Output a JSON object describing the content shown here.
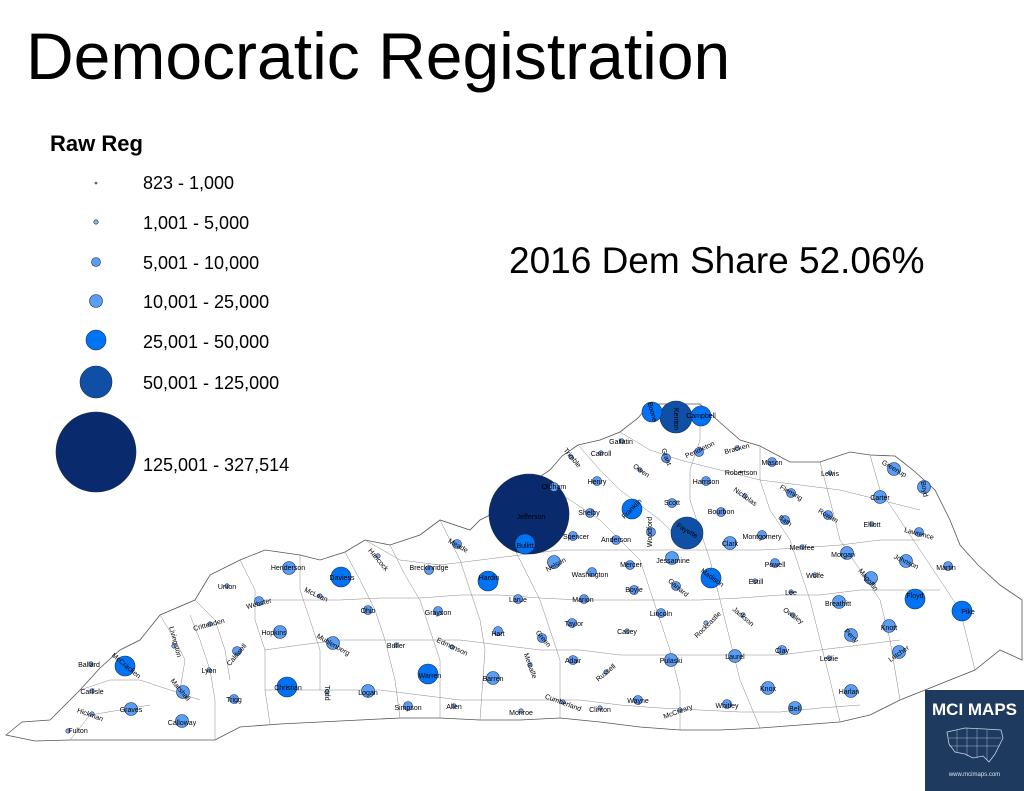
{
  "title": "Democratic Registration",
  "legend": {
    "title": "Raw Reg",
    "classes": [
      {
        "label": "823 - 1,000",
        "color": "#99b9f0"
      },
      {
        "label": "1,001 - 5,000",
        "color": "#8fb3f2"
      },
      {
        "label": "5,001 - 10,000",
        "color": "#5e99f3"
      },
      {
        "label": "10,001 - 25,000",
        "color": "#5a9df5"
      },
      {
        "label": "25,001 - 50,000",
        "color": "#0073f5"
      },
      {
        "label": "50,001 - 125,000",
        "color": "#0f4fa5"
      },
      {
        "label": "125,001 - 327,514",
        "color": "#0a2a6e"
      }
    ]
  },
  "annotation": "2016 Dem Share 52.06%",
  "logo": {
    "text": "MCI MAPS",
    "url": "www.mcimaps.com"
  },
  "counties": [
    {
      "name": "Jefferson",
      "cls": 6
    },
    {
      "name": "Fayette",
      "cls": 5
    },
    {
      "name": "Kenton",
      "cls": 5
    },
    {
      "name": "Boone",
      "cls": 4
    },
    {
      "name": "Campbell",
      "cls": 4
    },
    {
      "name": "Bullitt",
      "cls": 4
    },
    {
      "name": "Hardin",
      "cls": 4
    },
    {
      "name": "Daviess",
      "cls": 4
    },
    {
      "name": "Warren",
      "cls": 4
    },
    {
      "name": "Christian",
      "cls": 4
    },
    {
      "name": "McCracken",
      "cls": 4
    },
    {
      "name": "Pike",
      "cls": 4
    },
    {
      "name": "Floyd",
      "cls": 4
    },
    {
      "name": "Madison",
      "cls": 4
    },
    {
      "name": "Franklin",
      "cls": 4
    },
    {
      "name": "Oldham",
      "cls": 2
    },
    {
      "name": "Shelby",
      "cls": 2
    },
    {
      "name": "Spencer",
      "cls": 2
    },
    {
      "name": "Anderson",
      "cls": 2
    },
    {
      "name": "Woodford",
      "cls": 2
    },
    {
      "name": "Scott",
      "cls": 2
    },
    {
      "name": "Bourbon",
      "cls": 2
    },
    {
      "name": "Clark",
      "cls": 3
    },
    {
      "name": "Montgomery",
      "cls": 2
    },
    {
      "name": "Jessamine",
      "cls": 3
    },
    {
      "name": "Mercer",
      "cls": 2
    },
    {
      "name": "Boyle",
      "cls": 2
    },
    {
      "name": "Garrard",
      "cls": 2
    },
    {
      "name": "Washington",
      "cls": 2
    },
    {
      "name": "Nelson",
      "cls": 3
    },
    {
      "name": "Marion",
      "cls": 2
    },
    {
      "name": "Larue",
      "cls": 2
    },
    {
      "name": "Meade",
      "cls": 2
    },
    {
      "name": "Breckinridge",
      "cls": 2
    },
    {
      "name": "Hancock",
      "cls": 1
    },
    {
      "name": "Henderson",
      "cls": 3
    },
    {
      "name": "Union",
      "cls": 1
    },
    {
      "name": "Webster",
      "cls": 2
    },
    {
      "name": "McLean",
      "cls": 1
    },
    {
      "name": "Ohio",
      "cls": 2
    },
    {
      "name": "Grayson",
      "cls": 2
    },
    {
      "name": "Hart",
      "cls": 2
    },
    {
      "name": "Green",
      "cls": 2
    },
    {
      "name": "Taylor",
      "cls": 2
    },
    {
      "name": "Casey",
      "cls": 1
    },
    {
      "name": "Lincoln",
      "cls": 2
    },
    {
      "name": "Rockcastle",
      "cls": 1
    },
    {
      "name": "Jackson",
      "cls": 1
    },
    {
      "name": "Estill",
      "cls": 1
    },
    {
      "name": "Powell",
      "cls": 2
    },
    {
      "name": "Lee",
      "cls": 1
    },
    {
      "name": "Owsley",
      "cls": 1
    },
    {
      "name": "Breathitt",
      "cls": 3
    },
    {
      "name": "Wolfe",
      "cls": 1
    },
    {
      "name": "Menifee",
      "cls": 1
    },
    {
      "name": "Morgan",
      "cls": 3
    },
    {
      "name": "Magoffin",
      "cls": 3
    },
    {
      "name": "Johnson",
      "cls": 3
    },
    {
      "name": "Martin",
      "cls": 2
    },
    {
      "name": "Knott",
      "cls": 3
    },
    {
      "name": "Perry",
      "cls": 3
    },
    {
      "name": "Letcher",
      "cls": 3
    },
    {
      "name": "Leslie",
      "cls": 1
    },
    {
      "name": "Clay",
      "cls": 2
    },
    {
      "name": "Laurel",
      "cls": 3
    },
    {
      "name": "Knox",
      "cls": 3
    },
    {
      "name": "Bell",
      "cls": 3
    },
    {
      "name": "Harlan",
      "cls": 3
    },
    {
      "name": "Whitley",
      "cls": 2
    },
    {
      "name": "McCreary",
      "cls": 1
    },
    {
      "name": "Wayne",
      "cls": 2
    },
    {
      "name": "Pulaski",
      "cls": 3
    },
    {
      "name": "Russell",
      "cls": 1
    },
    {
      "name": "Clinton",
      "cls": 1
    },
    {
      "name": "Cumberland",
      "cls": 1
    },
    {
      "name": "Adair",
      "cls": 2
    },
    {
      "name": "Metcalfe",
      "cls": 1
    },
    {
      "name": "Monroe",
      "cls": 1
    },
    {
      "name": "Allen",
      "cls": 1
    },
    {
      "name": "Barren",
      "cls": 3
    },
    {
      "name": "Edmonson",
      "cls": 1
    },
    {
      "name": "Butler",
      "cls": 1
    },
    {
      "name": "Muhlenberg",
      "cls": 3
    },
    {
      "name": "Logan",
      "cls": 3
    },
    {
      "name": "Simpson",
      "cls": 2
    },
    {
      "name": "Todd",
      "cls": 1
    },
    {
      "name": "Trigg",
      "cls": 2
    },
    {
      "name": "Hopkins",
      "cls": 3
    },
    {
      "name": "Caldwell",
      "cls": 2
    },
    {
      "name": "Crittenden",
      "cls": 1
    },
    {
      "name": "Livingston",
      "cls": 1
    },
    {
      "name": "Lyon",
      "cls": 1
    },
    {
      "name": "Marshall",
      "cls": 3
    },
    {
      "name": "Calloway",
      "cls": 3
    },
    {
      "name": "Graves",
      "cls": 3
    },
    {
      "name": "Ballard",
      "cls": 1
    },
    {
      "name": "Carlisle",
      "cls": 1
    },
    {
      "name": "Hickman",
      "cls": 1
    },
    {
      "name": "Fulton",
      "cls": 1
    },
    {
      "name": "Trimble",
      "cls": 1
    },
    {
      "name": "Carroll",
      "cls": 1
    },
    {
      "name": "Gallatin",
      "cls": 1
    },
    {
      "name": "Owen",
      "cls": 1
    },
    {
      "name": "Grant",
      "cls": 2
    },
    {
      "name": "Pendleton",
      "cls": 2
    },
    {
      "name": "Bracken",
      "cls": 1
    },
    {
      "name": "Harrison",
      "cls": 2
    },
    {
      "name": "Robertson",
      "cls": 0
    },
    {
      "name": "Nicholas",
      "cls": 1
    },
    {
      "name": "Mason",
      "cls": 2
    },
    {
      "name": "Fleming",
      "cls": 2
    },
    {
      "name": "Bath",
      "cls": 2
    },
    {
      "name": "Rowan",
      "cls": 2
    },
    {
      "name": "Lewis",
      "cls": 1
    },
    {
      "name": "Greenup",
      "cls": 3
    },
    {
      "name": "Carter",
      "cls": 3
    },
    {
      "name": "Elliott",
      "cls": 1
    },
    {
      "name": "Lawrence",
      "cls": 2
    },
    {
      "name": "Boyd",
      "cls": 3
    },
    {
      "name": "Henry",
      "cls": 2
    }
  ]
}
